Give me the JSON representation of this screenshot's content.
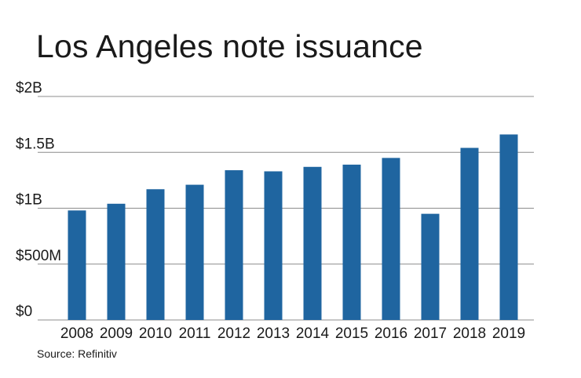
{
  "title": "Los Angeles note issuance",
  "source": "Source: Refinitiv",
  "chart_data": {
    "type": "bar",
    "title": "Los Angeles note issuance",
    "xlabel": "",
    "ylabel": "",
    "categories": [
      "2008",
      "2009",
      "2010",
      "2011",
      "2012",
      "2013",
      "2014",
      "2015",
      "2016",
      "2017",
      "2018",
      "2019"
    ],
    "values": [
      0.98,
      1.04,
      1.17,
      1.21,
      1.34,
      1.33,
      1.37,
      1.39,
      1.45,
      0.95,
      1.54,
      1.66
    ],
    "units": "billions of dollars",
    "ylim": [
      0,
      2
    ],
    "yticks": [
      0,
      0.5,
      1,
      1.5,
      2
    ],
    "ytick_labels": [
      "$0",
      "$500M",
      "$1B",
      "$1.5B",
      "$2B"
    ],
    "bar_color": "#1f65a0",
    "grid_color": "#8c8c8c",
    "grid": true
  }
}
